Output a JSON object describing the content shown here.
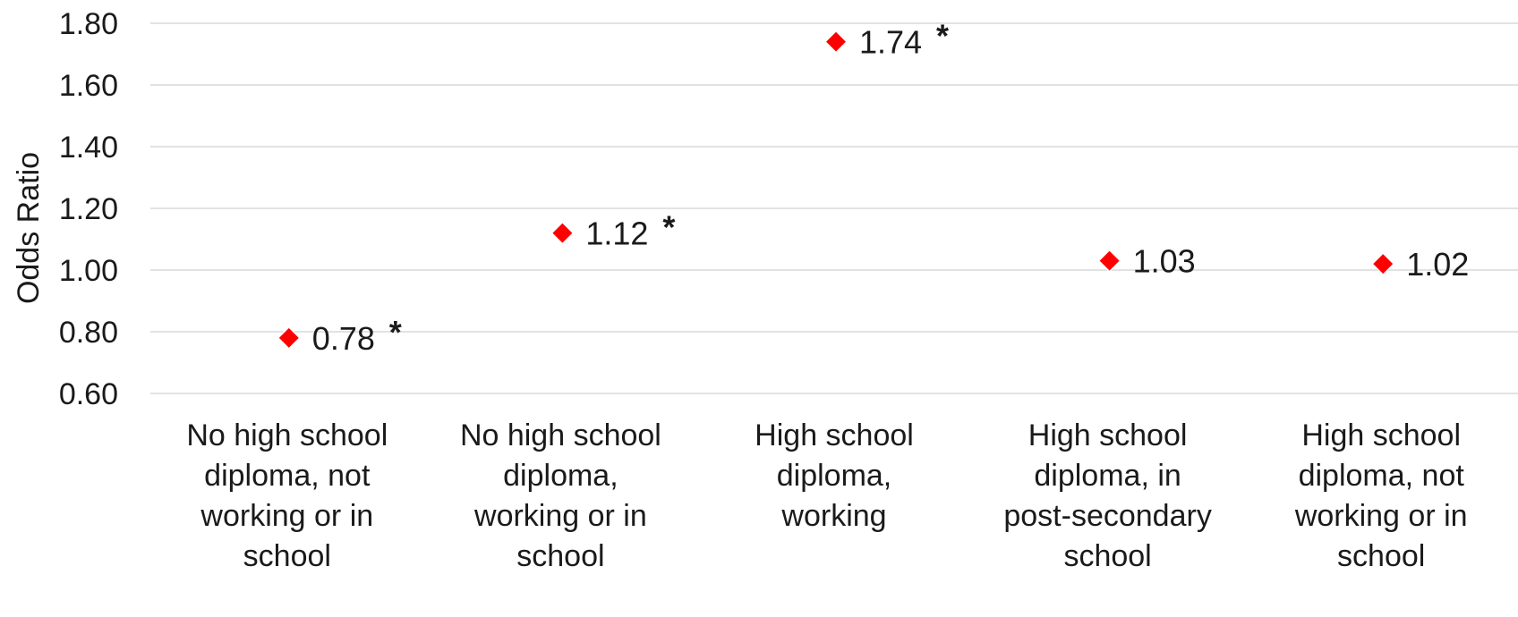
{
  "chart_data": {
    "type": "scatter",
    "ylabel": "Odds Ratio",
    "ylim": [
      0.6,
      1.8
    ],
    "yticks": [
      "0.60",
      "0.80",
      "1.00",
      "1.20",
      "1.40",
      "1.60",
      "1.80"
    ],
    "grid": true,
    "marker": "diamond",
    "marker_color": "#ff0000",
    "categories": [
      [
        "No high school",
        "diploma, not",
        "working or in",
        "school"
      ],
      [
        "No high school",
        "diploma,",
        "working or in",
        "school"
      ],
      [
        "High school",
        "diploma,",
        "working"
      ],
      [
        "High school",
        "diploma, in",
        "post-secondary",
        "school"
      ],
      [
        "High school",
        "diploma, not",
        "working or in",
        "school"
      ]
    ],
    "values": [
      0.78,
      1.12,
      1.74,
      1.03,
      1.02
    ],
    "value_labels": [
      "0.78",
      "1.12",
      "1.74",
      "1.03",
      "1.02"
    ],
    "significance": [
      "*",
      "*",
      "*",
      "",
      ""
    ]
  }
}
